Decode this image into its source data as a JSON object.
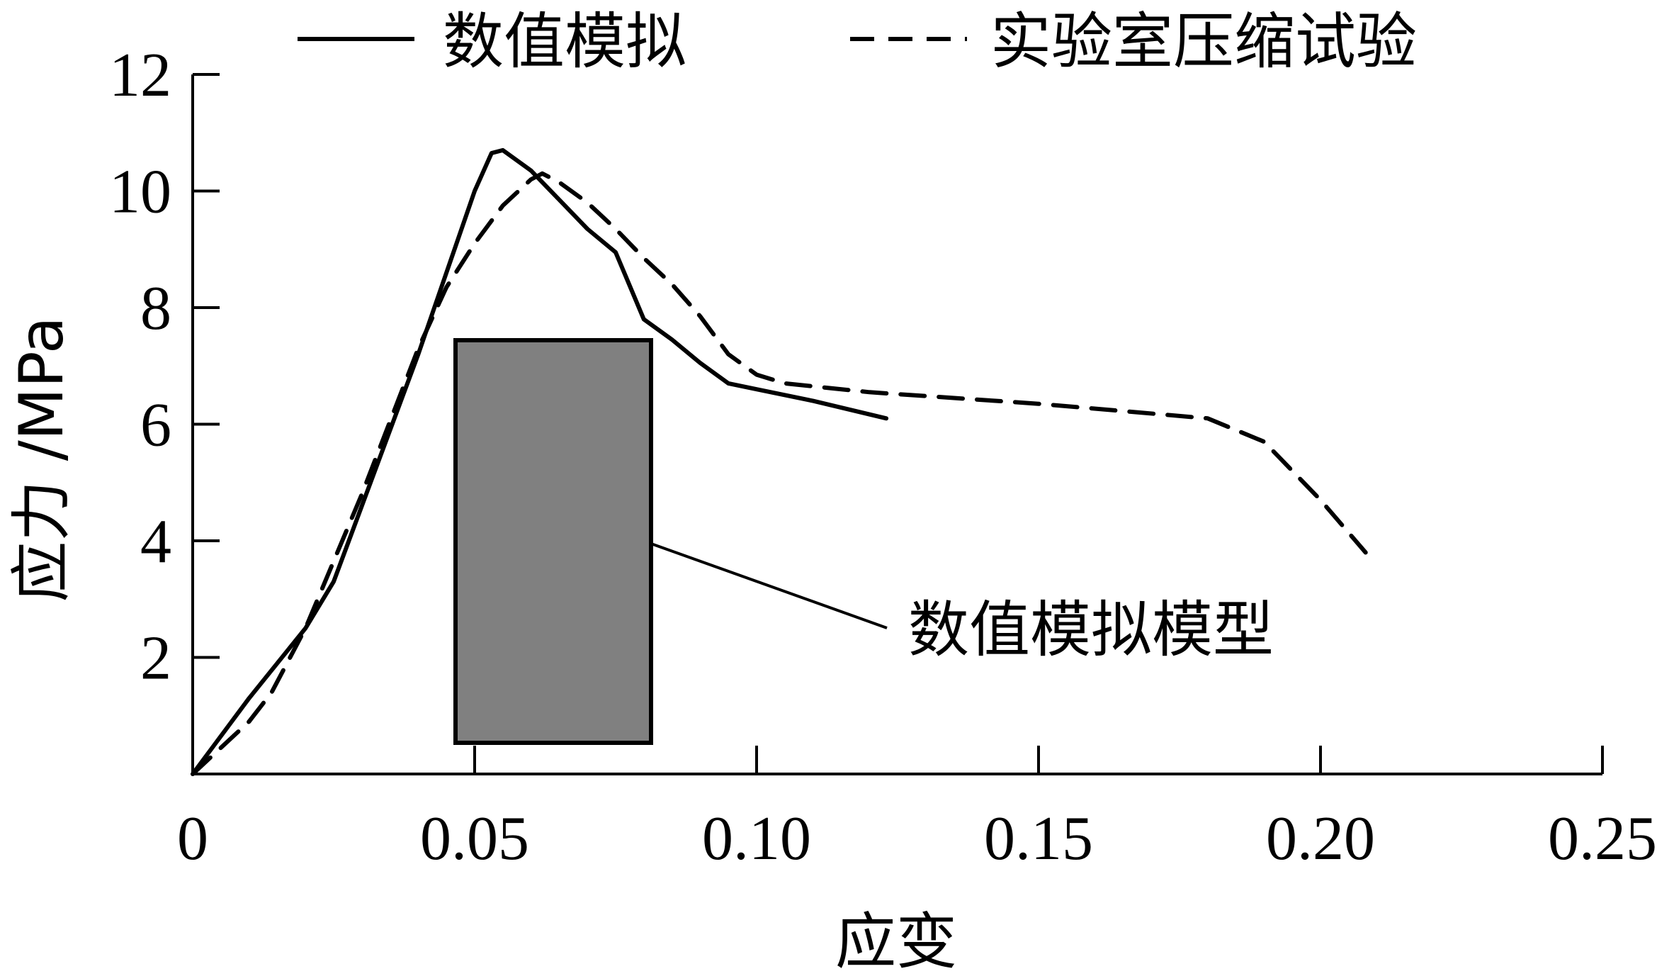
{
  "chart_data": {
    "type": "line",
    "xlabel": "应变",
    "ylabel": "应力 /MPa",
    "xlim": [
      0,
      0.25
    ],
    "ylim": [
      0,
      12
    ],
    "x_ticks": [
      0,
      0.05,
      0.1,
      0.15,
      0.2,
      0.25
    ],
    "x_tick_labels": [
      "0",
      "0.05",
      "0.10",
      "0.15",
      "0.20",
      "0.25"
    ],
    "y_ticks": [
      2,
      4,
      6,
      8,
      10,
      12
    ],
    "y_tick_labels": [
      "2",
      "4",
      "6",
      "8",
      "10",
      "12"
    ],
    "legend_position": "top",
    "grid": false,
    "series": [
      {
        "name": "数值模拟",
        "style": "solid",
        "color": "#000000",
        "x": [
          0,
          0.01,
          0.02,
          0.025,
          0.03,
          0.04,
          0.05,
          0.053,
          0.055,
          0.06,
          0.065,
          0.07,
          0.075,
          0.08,
          0.085,
          0.09,
          0.095,
          0.1,
          0.11,
          0.123
        ],
        "y": [
          0,
          1.3,
          2.5,
          3.3,
          4.6,
          7.2,
          10.0,
          10.65,
          10.7,
          10.35,
          9.85,
          9.35,
          8.95,
          7.8,
          7.45,
          7.05,
          6.7,
          6.6,
          6.4,
          6.1
        ]
      },
      {
        "name": "实验室压缩试验",
        "style": "dashed",
        "color": "#000000",
        "x": [
          0,
          0.01,
          0.014,
          0.02,
          0.03,
          0.04,
          0.045,
          0.05,
          0.055,
          0.06,
          0.062,
          0.065,
          0.07,
          0.075,
          0.08,
          0.085,
          0.09,
          0.095,
          0.1,
          0.105,
          0.12,
          0.15,
          0.18,
          0.19,
          0.2,
          0.208
        ],
        "y": [
          0,
          0.9,
          1.4,
          2.5,
          4.8,
          7.3,
          8.35,
          9.1,
          9.75,
          10.2,
          10.3,
          10.15,
          9.8,
          9.35,
          8.85,
          8.4,
          7.85,
          7.2,
          6.85,
          6.7,
          6.55,
          6.35,
          6.1,
          5.7,
          4.7,
          3.8
        ]
      }
    ],
    "annotation": {
      "text": "数值模拟模型",
      "box_color": "#808080"
    }
  }
}
